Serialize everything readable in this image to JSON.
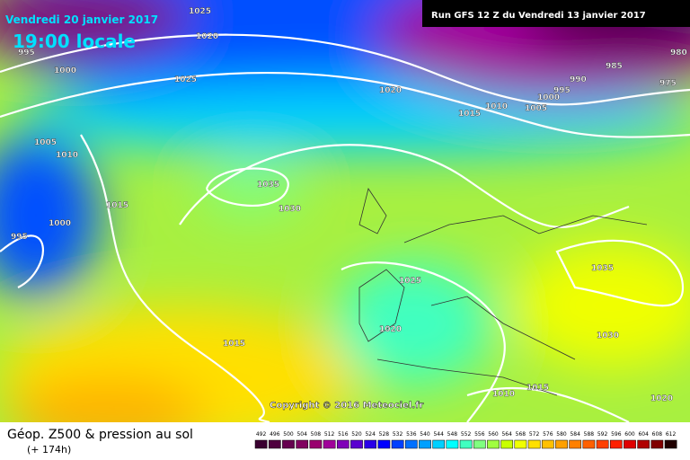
{
  "header": {
    "valid_date": "Vendredi 20 janvier 2017",
    "local_time": "19:00 locale",
    "run": "Run GFS 12 Z du Vendredi 13 janvier 2017"
  },
  "map": {
    "isobar_labels": [
      "1025",
      "1020",
      "995",
      "1000",
      "1025",
      "1020",
      "1015",
      "1010",
      "1005",
      "1000",
      "995",
      "990",
      "985",
      "980",
      "975",
      "1005",
      "1010",
      "1035",
      "1030",
      "1015",
      "1000",
      "995",
      "1025",
      "1035",
      "1020",
      "1030",
      "1015",
      "1010",
      "1015",
      "1020"
    ],
    "copyright": "Copyright © 2016 Meteociel.fr"
  },
  "footer": {
    "title": "Géop. Z500 & pression au sol",
    "lead_time": "(+ 174h)"
  },
  "colorbar": {
    "ticks": [
      492,
      496,
      500,
      504,
      508,
      512,
      516,
      520,
      524,
      528,
      532,
      536,
      540,
      544,
      548,
      552,
      556,
      560,
      564,
      568,
      572,
      576,
      580,
      584,
      588,
      592,
      596,
      600,
      604,
      608,
      612
    ],
    "colors": [
      "#3a0030",
      "#50003f",
      "#66004f",
      "#80005f",
      "#99006e",
      "#a0009a",
      "#8000b8",
      "#5a00d0",
      "#2a00e8",
      "#0000ff",
      "#0040ff",
      "#0070ff",
      "#00a0ff",
      "#00d0ff",
      "#00ffff",
      "#40ffc0",
      "#80ff80",
      "#a0ff40",
      "#c8ff00",
      "#f0ff00",
      "#ffe000",
      "#ffc000",
      "#ffa000",
      "#ff8000",
      "#ff6000",
      "#ff4000",
      "#ff2000",
      "#e00000",
      "#b00000",
      "#800000",
      "#200000"
    ]
  }
}
